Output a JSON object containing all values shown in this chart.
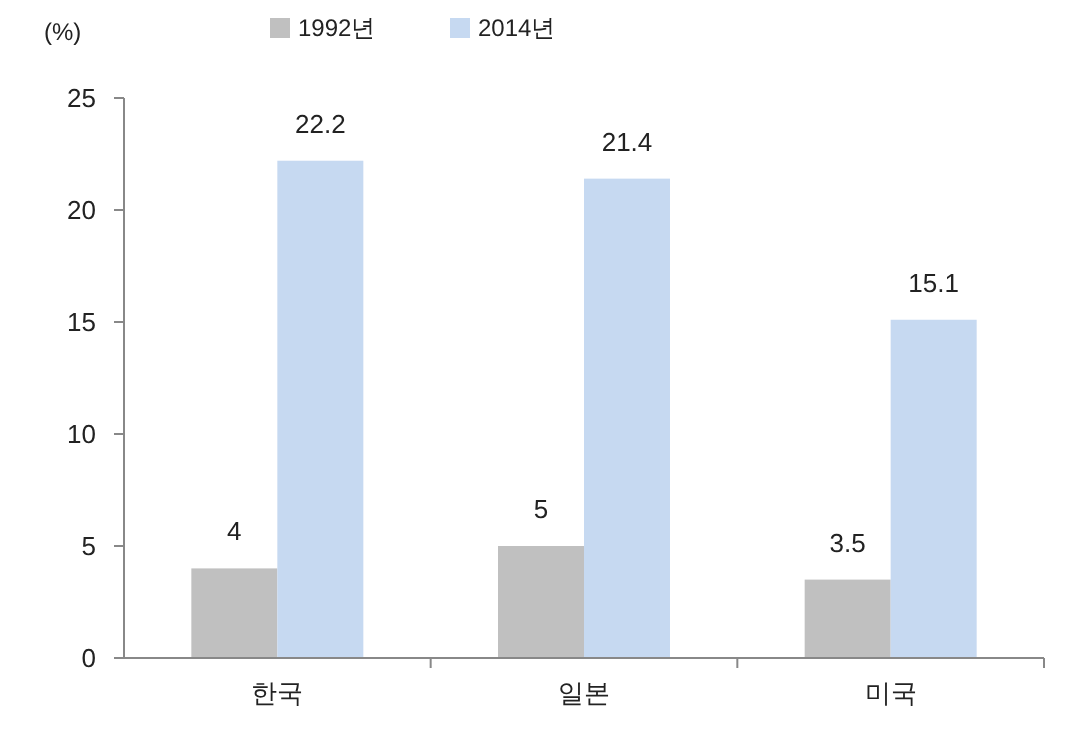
{
  "chart_data": {
    "type": "bar",
    "ylabel": "(%)",
    "categories": [
      "한국",
      "일본",
      "미국"
    ],
    "series": [
      {
        "name": "1992년",
        "color": "#c0c0c0",
        "values": [
          4,
          5,
          3.5
        ]
      },
      {
        "name": "2014년",
        "color": "#c6d9f1",
        "values": [
          22.2,
          21.4,
          15.1
        ]
      }
    ],
    "ylim": [
      0,
      25
    ],
    "yticks": [
      0,
      5,
      10,
      15,
      20,
      25
    ],
    "data_labels": true,
    "legend": "top",
    "grid": false
  }
}
